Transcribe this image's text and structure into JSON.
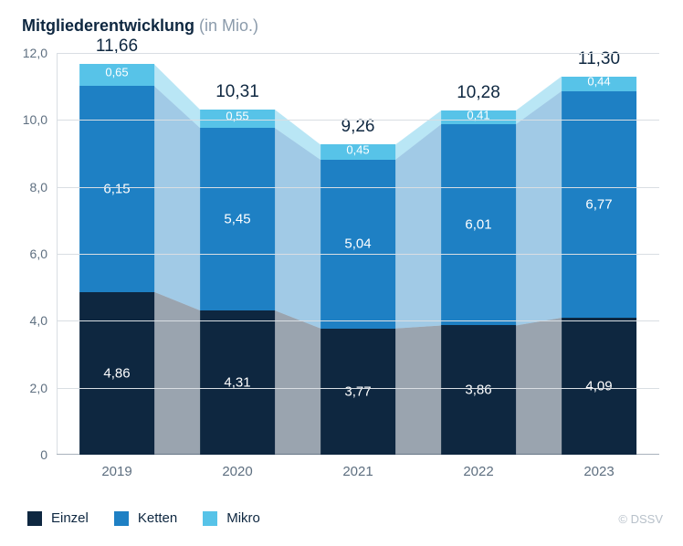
{
  "title": {
    "main": "Mitgliederentwicklung",
    "sub": "(in Mio.)"
  },
  "credit": "© DSSV",
  "colors": {
    "einzel": "#0e2740",
    "ketten": "#1e80c4",
    "mikro": "#57c3e8",
    "grid": "#d9dee3",
    "axis_text": "#5e6f80",
    "title_text": "#0e2740",
    "bg": "#ffffff"
  },
  "axis": {
    "ymin": 0,
    "ymax": 12,
    "yticks": [
      0,
      2.0,
      4.0,
      6.0,
      8.0,
      10.0,
      12.0
    ],
    "ytick_labels": [
      "0",
      "2,0",
      "4,0",
      "6,0",
      "8,0",
      "10,0",
      "12,0"
    ]
  },
  "chart": {
    "type": "stacked-bar-with-connectors",
    "bar_width_ratio": 0.62,
    "categories": [
      "2019",
      "2020",
      "2021",
      "2022",
      "2023"
    ],
    "series": [
      {
        "key": "einzel",
        "label": "Einzel"
      },
      {
        "key": "ketten",
        "label": "Ketten"
      },
      {
        "key": "mikro",
        "label": "Mikro"
      }
    ],
    "data": [
      {
        "einzel": 4.86,
        "ketten": 6.15,
        "mikro": 0.65,
        "total": 11.66,
        "labels": {
          "einzel": "4,86",
          "ketten": "6,15",
          "mikro": "0,65",
          "total": "11,66"
        }
      },
      {
        "einzel": 4.31,
        "ketten": 5.45,
        "mikro": 0.55,
        "total": 10.31,
        "labels": {
          "einzel": "4,31",
          "ketten": "5,45",
          "mikro": "0,55",
          "total": "10,31"
        }
      },
      {
        "einzel": 3.77,
        "ketten": 5.04,
        "mikro": 0.45,
        "total": 9.26,
        "labels": {
          "einzel": "3,77",
          "ketten": "5,04",
          "mikro": "0,45",
          "total": "9,26"
        }
      },
      {
        "einzel": 3.86,
        "ketten": 6.01,
        "mikro": 0.41,
        "total": 10.28,
        "labels": {
          "einzel": "3,86",
          "ketten": "6,01",
          "mikro": "0,41",
          "total": "10,28"
        }
      },
      {
        "einzel": 4.09,
        "ketten": 6.77,
        "mikro": 0.44,
        "total": 11.3,
        "labels": {
          "einzel": "4,09",
          "ketten": "6,77",
          "mikro": "0,44",
          "total": "11,30"
        }
      }
    ]
  },
  "legend": [
    {
      "key": "einzel",
      "label": "Einzel"
    },
    {
      "key": "ketten",
      "label": "Ketten"
    },
    {
      "key": "mikro",
      "label": "Mikro"
    }
  ]
}
